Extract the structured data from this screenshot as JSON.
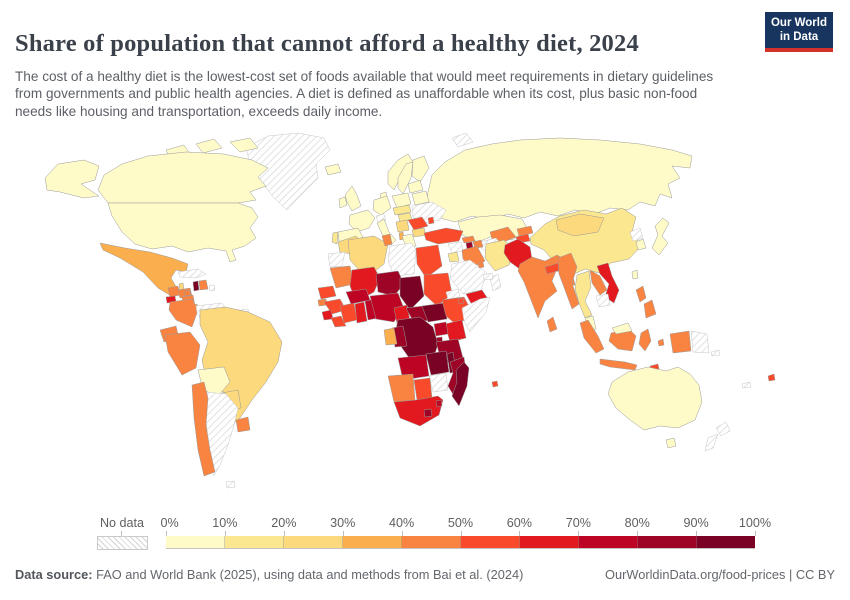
{
  "header": {
    "title": "Share of population that cannot afford a healthy diet, 2024",
    "subtitle": "The cost of a healthy diet is the lowest-cost set of foods available that would meet requirements in dietary guidelines from governments and public health agencies. A diet is defined as unaffordable when its cost, plus basic non-food needs like housing and transportation, exceeds daily income.",
    "logo": {
      "line1": "Our World",
      "line2": "in Data",
      "bg_color": "#17355e",
      "accent_color": "#d3302a"
    }
  },
  "legend": {
    "no_data_label": "No data",
    "tick_labels": [
      "0%",
      "10%",
      "20%",
      "30%",
      "40%",
      "50%",
      "60%",
      "70%",
      "80%",
      "90%",
      "100%"
    ]
  },
  "footer": {
    "source_prefix": "Data source:",
    "source_text": " FAO and World Bank (2025), using data and methods from Bai et al. (2024)",
    "right_text": "OurWorldinData.org/food-prices | CC BY"
  },
  "map": {
    "ocean_color": "#ffffff",
    "border_color": "#9a9a9a",
    "bin_order": [
      "b1",
      "b2",
      "b3",
      "b4",
      "b5",
      "b6",
      "b7",
      "b8",
      "b9",
      "b10"
    ],
    "bins": {
      "b1": {
        "label": "0-10%",
        "color": "#FEFBC8"
      },
      "b2": {
        "label": "10-20%",
        "color": "#FBE78F"
      },
      "b3": {
        "label": "20-30%",
        "color": "#FCD97D"
      },
      "b4": {
        "label": "30-40%",
        "color": "#FBAE4E"
      },
      "b5": {
        "label": "40-50%",
        "color": "#F98442"
      },
      "b6": {
        "label": "50-60%",
        "color": "#F94A2B"
      },
      "b7": {
        "label": "60-70%",
        "color": "#E2191F"
      },
      "b8": {
        "label": "70-80%",
        "color": "#BE0425"
      },
      "b9": {
        "label": "80-90%",
        "color": "#9D0425"
      },
      "b10": {
        "label": "90-100%",
        "color": "#7A0325"
      },
      "nodata": {
        "label": "No data",
        "color": "hatch"
      }
    },
    "regions": {
      "greenland": "nodata",
      "alaska": "b1",
      "canada": "b1",
      "canada-arctic-1": "b1",
      "canada-arctic-2": "b1",
      "canada-arctic-3": "b1",
      "usa": "b1",
      "mexico": "b4",
      "guatemala": "b5",
      "belize": "b3",
      "el-salvador": "b7",
      "honduras": "b5",
      "nicaragua": "b5",
      "costa-rica": "b4",
      "panama": "b5",
      "cuba": "nodata",
      "jamaica": "b5",
      "haiti": "b10",
      "dominican-republic": "b5",
      "puerto-rico": "nodata",
      "colombia": "b5",
      "venezuela": "nodata",
      "guyana": "b1",
      "suriname": "nodata",
      "fr-guiana": "nodata",
      "ecuador": "b5",
      "peru": "b5",
      "brazil": "b3",
      "bolivia": "b1",
      "paraguay": "b3",
      "chile": "b5",
      "argentina": "nodata",
      "uruguay": "b5",
      "falkland-islands": "nodata",
      "iceland": "b1",
      "norway": "b1",
      "sweden": "b1",
      "finland": "b1",
      "denmark": "b1",
      "uk": "b1",
      "ireland": "b1",
      "france": "b1",
      "spain": "b1",
      "portugal": "b2",
      "germany": "b1",
      "switzerland": "nodata",
      "italy": "b1",
      "poland": "b1",
      "czech-slovakia": "b2",
      "hungary": "b2",
      "belarus": "b1",
      "baltics": "b1",
      "ukraine": "nodata",
      "moldova": "b6",
      "romania": "b6",
      "balkans": "b3",
      "bulgaria": "b3",
      "greece": "b1",
      "albania": "b4",
      "russia": "b1",
      "svalbard": "nodata",
      "kazakhstan": "b1",
      "uzbekistan": "b5",
      "turkmenistan": "nodata",
      "kyrgyzstan": "b5",
      "tajikistan": "b6",
      "afghanistan": "nodata",
      "georgia": "b5",
      "armenia": "b9",
      "azerbaijan": "b5",
      "turkey": "b6",
      "syria": "nodata",
      "jordan": "b2",
      "iraq": "b5",
      "iran": "b2",
      "saudi-arabia": "nodata",
      "kuwait": "b5",
      "yemen": "b7",
      "oman": "nodata",
      "uae-qatar": "nodata",
      "morocco": "b3",
      "western-sahara": "nodata",
      "algeria": "b3",
      "tunisia": "b5",
      "libya": "nodata",
      "egypt": "b6",
      "mauritania": "b5",
      "mali": "b7",
      "niger": "b9",
      "chad": "b10",
      "sudan": "b6",
      "eritrea": "nodata",
      "senegal": "b6",
      "guinea-bissau": "b5",
      "guinea": "b6",
      "sierra-leone": "b7",
      "liberia": "b6",
      "cote-divoire": "b6",
      "ghana": "b7",
      "togo-benin": "b8",
      "burkina-faso": "b8",
      "nigeria": "b8",
      "cameroon": "b7",
      "central-african-republic": "b9",
      "south-sudan": "b10",
      "ethiopia": "b6",
      "djibouti": "b6",
      "somalia": "nodata",
      "kenya": "b7",
      "uganda": "b8",
      "rwanda-burundi": "b9",
      "drc": "b10",
      "congo": "b9",
      "gabon": "b4",
      "tanzania": "b9",
      "angola": "b8",
      "zambia": "b10",
      "malawi": "b10",
      "mozambique": "b9",
      "zimbabwe": "nodata",
      "namibia": "b5",
      "botswana": "b6",
      "south-africa": "b7",
      "lesotho": "b9",
      "eswatini": "b8",
      "madagascar": "b10",
      "mauritius": "b6",
      "china": "b2",
      "mongolia": "b3",
      "north-korea": "nodata",
      "south-korea": "b1",
      "japan": "b1",
      "taiwan": "b1",
      "pakistan": "b7",
      "india": "b5",
      "nepal": "b6",
      "bhutan": "b4",
      "bangladesh": "b5",
      "sri-lanka": "b5",
      "myanmar": "b5",
      "thailand": "b2",
      "laos": "b5",
      "vietnam": "b7",
      "cambodia": "nodata",
      "malaysia": "b1",
      "malaysia-borneo": "b1",
      "sumatra": "b5",
      "java": "b5",
      "borneo": "b5",
      "sulawesi": "b5",
      "moluccas": "b5",
      "papua-indonesia": "b5",
      "papua-new-guinea": "nodata",
      "philippines": "b5",
      "timor-leste": "b6",
      "australia": "b1",
      "tasmania": "b1",
      "new-zealand": "nodata",
      "fiji": "b6",
      "new-caledonia": "nodata",
      "solomon-islands": "nodata"
    }
  },
  "chart_data": {
    "type": "heatmap",
    "subtype": "choropleth-world-map",
    "title": "Share of population that cannot afford a healthy diet, 2024",
    "unit": "% of population",
    "legend_position": "bottom",
    "legend_bins": [
      "0%",
      "10%",
      "20%",
      "30%",
      "40%",
      "50%",
      "60%",
      "70%",
      "80%",
      "90%",
      "100%",
      "No data"
    ],
    "values_by_bin": {
      "0-10%": [
        "United States",
        "Canada",
        "Guyana",
        "Bolivia",
        "Iceland",
        "Norway",
        "Sweden",
        "Finland",
        "Denmark",
        "United Kingdom",
        "Ireland",
        "France",
        "Spain",
        "Germany",
        "Italy",
        "Poland",
        "Belarus",
        "Baltic states",
        "Greece",
        "Russia",
        "Kazakhstan",
        "South Korea",
        "Japan",
        "Taiwan",
        "Malaysia",
        "Australia"
      ],
      "10-20%": [
        "Portugal",
        "Czechia/Slovakia",
        "Hungary",
        "Jordan",
        "Iran",
        "China",
        "Thailand"
      ],
      "20-30%": [
        "Morocco",
        "Algeria",
        "Brazil",
        "Paraguay",
        "Mongolia",
        "Bulgaria",
        "Serbia/Bosnia/Croatia",
        "Belize"
      ],
      "30-40%": [
        "Mexico",
        "Costa Rica",
        "Gabon",
        "Albania",
        "Bhutan"
      ],
      "40-50%": [
        "Guatemala",
        "Honduras",
        "Nicaragua",
        "Panama",
        "Jamaica",
        "Dominican Republic",
        "Colombia",
        "Ecuador",
        "Peru",
        "Chile",
        "Uruguay",
        "Mauritania",
        "Tunisia",
        "Guinea-Bissau",
        "Namibia",
        "Iraq",
        "Kuwait",
        "Georgia",
        "Azerbaijan",
        "Uzbekistan",
        "Kyrgyzstan",
        "India",
        "Bangladesh",
        "Sri Lanka",
        "Myanmar",
        "Laos",
        "Indonesia",
        "Philippines"
      ],
      "50-60%": [
        "Senegal",
        "Guinea",
        "Liberia",
        "Cote d'Ivoire",
        "Egypt",
        "Sudan",
        "Ethiopia",
        "Djibouti",
        "Botswana",
        "Mauritius",
        "Romania",
        "Moldova",
        "Turkey",
        "Tajikistan",
        "Nepal",
        "Fiji",
        "Timor-Leste"
      ],
      "60-70%": [
        "El Salvador",
        "Mali",
        "Sierra Leone",
        "Ghana",
        "Kenya",
        "Cameroon",
        "South Africa",
        "Yemen",
        "Pakistan",
        "Vietnam"
      ],
      "70-80%": [
        "Burkina Faso",
        "Togo/Benin",
        "Nigeria",
        "Angola",
        "Uganda",
        "Eswatini"
      ],
      "80-90%": [
        "Niger",
        "Central African Republic",
        "Congo",
        "Tanzania",
        "Rwanda/Burundi",
        "Mozambique",
        "Lesotho",
        "Armenia"
      ],
      "90-100%": [
        "Chad",
        "South Sudan",
        "Democratic Republic of Congo",
        "Zambia",
        "Malawi",
        "Madagascar",
        "Haiti"
      ],
      "No data": [
        "Greenland",
        "Cuba",
        "Puerto Rico",
        "Venezuela",
        "Suriname",
        "French Guiana",
        "Argentina",
        "Falkland Islands",
        "Switzerland",
        "Ukraine",
        "Svalbard",
        "Turkmenistan",
        "Afghanistan",
        "Syria",
        "Saudi Arabia",
        "Oman",
        "UAE/Qatar",
        "Western Sahara",
        "Libya",
        "Eritrea",
        "Somalia",
        "Zimbabwe",
        "North Korea",
        "Cambodia",
        "Papua New Guinea",
        "New Zealand",
        "New Caledonia",
        "Solomon Islands"
      ]
    }
  }
}
